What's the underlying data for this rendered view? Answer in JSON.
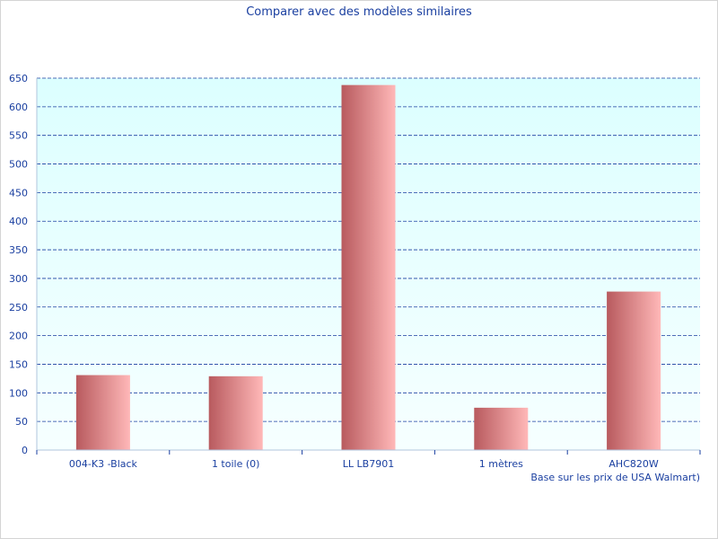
{
  "chart_data": {
    "type": "bar",
    "title": "Comparer avec des modèles similaires",
    "xlabel": "Base sur les prix de USA Walmart)",
    "ylabel": "",
    "categories": [
      "004-K3 -Black",
      "1 toile (0)",
      "LL LB7901",
      "1 mètres",
      "AHC820W"
    ],
    "values": [
      131,
      129,
      638,
      74,
      277
    ],
    "ylim": [
      0,
      650
    ],
    "yticks": [
      0,
      50,
      100,
      150,
      200,
      250,
      300,
      350,
      400,
      450,
      500,
      550,
      600,
      650
    ],
    "grid": true,
    "colors": {
      "plot_bg_top": "#dcffff",
      "plot_bg_bottom": "#f6ffff",
      "bar_dark": "#b85a5e",
      "bar_light": "#ffb8b8",
      "grid": "#1a3fa0",
      "text": "#1a3fa0"
    }
  }
}
